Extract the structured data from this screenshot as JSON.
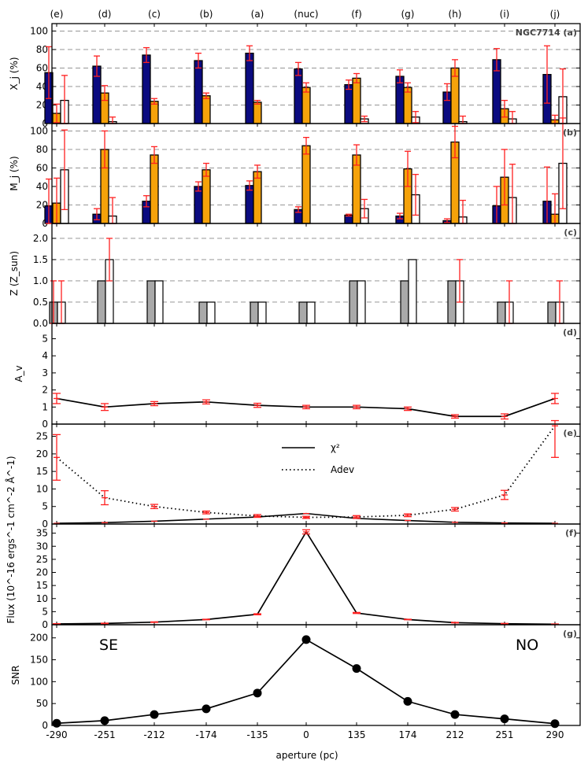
{
  "figure_title": "NGC7714 (a)",
  "colors": {
    "young": "#0b0b80",
    "inter": "#f5a20a",
    "old": "#ffffff",
    "metal": "#a9a9a9",
    "err": "#ff2020",
    "grid": "#888888"
  },
  "chart_data": {
    "type": "bar",
    "apertures": [
      -290,
      -251,
      -212,
      -174,
      -135,
      0,
      135,
      174,
      212,
      251,
      290
    ],
    "aperture_tick_labels": [
      "-290",
      "-251",
      "-212",
      "-174",
      "-135",
      "0",
      "135",
      "174",
      "212",
      "251",
      "290"
    ],
    "region_labels": [
      "(e)",
      "(d)",
      "(c)",
      "(b)",
      "(a)",
      "(nuc)",
      "(f)",
      "(g)",
      "(h)",
      "(i)",
      "(j)"
    ],
    "xlabel": "aperture (pc)",
    "panels": [
      {
        "id": "a",
        "label": "NGC7714 (a)",
        "ylabel": "X_j (%)",
        "ylim": [
          0,
          108
        ],
        "yticks": [
          0,
          20,
          40,
          60,
          80,
          100
        ],
        "grid_y": [
          20,
          40,
          60,
          80,
          100
        ],
        "series": [
          {
            "name": "young",
            "values": [
              55,
              62,
              74,
              68,
              76,
              59,
              42,
              51,
              34,
              69,
              53
            ],
            "err": [
              28,
              11,
              8,
              8,
              8,
              7,
              5,
              7,
              9,
              12,
              31
            ]
          },
          {
            "name": "intermediate",
            "values": [
              11,
              33,
              24,
              30,
              23,
              39,
              49,
              39,
              60,
              16,
              4
            ],
            "err": [
              10,
              8,
              3,
              3,
              2,
              5,
              5,
              5,
              9,
              9,
              5
            ]
          },
          {
            "name": "old",
            "values": [
              25,
              2,
              0,
              0,
              0,
              0,
              5,
              7,
              2,
              5,
              29
            ],
            "err": [
              27,
              5,
              0,
              0,
              0,
              0,
              3,
              6,
              6,
              8,
              30
            ]
          }
        ]
      },
      {
        "id": "b",
        "label": "(b)",
        "ylabel": "M_j (%)",
        "ylim": [
          0,
          108
        ],
        "yticks": [
          0,
          20,
          40,
          60,
          80,
          100
        ],
        "grid_y": [
          20,
          40,
          60,
          80,
          100
        ],
        "series": [
          {
            "name": "young",
            "values": [
              19,
              10,
              24,
              40,
              41,
              15,
              9,
              8,
              3,
              19,
              24
            ],
            "err": [
              29,
              6,
              6,
              5,
              5,
              3,
              1,
              3,
              2,
              21,
              37
            ]
          },
          {
            "name": "intermediate",
            "values": [
              22,
              80,
              74,
              58,
              56,
              84,
              74,
              59,
              88,
              50,
              10
            ],
            "err": [
              27,
              20,
              9,
              7,
              7,
              9,
              11,
              19,
              17,
              30,
              22
            ]
          },
          {
            "name": "old",
            "values": [
              58,
              8,
              0,
              0,
              0,
              0,
              16,
              31,
              7,
              28,
              65
            ],
            "err": [
              43,
              20,
              0,
              0,
              0,
              0,
              10,
              22,
              18,
              36,
              49
            ]
          }
        ]
      },
      {
        "id": "c",
        "label": "(c)",
        "ylabel": "Z (Z_sun)",
        "ylim": [
          0,
          2.35
        ],
        "yticks": [
          0.0,
          0.5,
          1.0,
          1.5,
          2.0
        ],
        "ytick_labels": [
          "0.0",
          "0.5",
          "1.0",
          "1.5",
          "2.0"
        ],
        "grid_y": [
          0.5,
          1.0,
          1.5,
          2.0
        ],
        "series": [
          {
            "name": "metal_young",
            "values": [
              0.5,
              1.0,
              1.0,
              0.5,
              0.5,
              0.5,
              1.0,
              1.0,
              1.0,
              0.5,
              0.5
            ],
            "err": [
              0.5,
              0,
              0,
              0,
              0,
              0,
              0,
              0,
              0,
              0,
              0
            ]
          },
          {
            "name": "metal_old",
            "values": [
              0.5,
              1.5,
              1.0,
              0.5,
              0.5,
              0.5,
              1.0,
              1.5,
              1.0,
              0.5,
              0.5
            ],
            "err": [
              0.5,
              0.5,
              0,
              0,
              0,
              0,
              0,
              0,
              0.5,
              0.5,
              0.5
            ]
          }
        ]
      },
      {
        "id": "d",
        "label": "(d)",
        "ylabel": "A_v",
        "ylim": [
          0,
          5.9
        ],
        "yticks": [
          0,
          1,
          2,
          3,
          4,
          5
        ],
        "line": {
          "values": [
            1.5,
            1.0,
            1.2,
            1.3,
            1.1,
            1.0,
            1.0,
            0.9,
            0.45,
            0.45,
            1.5
          ],
          "err": [
            0.3,
            0.2,
            0.12,
            0.12,
            0.12,
            0.1,
            0.1,
            0.1,
            0.1,
            0.15,
            0.3
          ]
        }
      },
      {
        "id": "e",
        "label": "(e)",
        "ylim": [
          0,
          28.5
        ],
        "yticks": [
          0,
          5,
          10,
          15,
          20,
          25
        ],
        "legend": [
          {
            "label": "χ²",
            "style": "solid"
          },
          {
            "label": "Adev",
            "style": "dotted"
          }
        ],
        "series": [
          {
            "name": "chi2",
            "values": [
              0.2,
              0.4,
              0.8,
              1.4,
              2.0,
              3.0,
              1.6,
              1.0,
              0.5,
              0.3,
              0.2
            ]
          },
          {
            "name": "adev",
            "values": [
              19,
              7.5,
              5.0,
              3.3,
              2.3,
              1.9,
              2.0,
              2.5,
              4.2,
              8.3,
              28
            ],
            "err": [
              6.5,
              2,
              0.6,
              0.4,
              0.4,
              0.3,
              0.4,
              0.4,
              0.5,
              1.3,
              9
            ]
          }
        ]
      },
      {
        "id": "f",
        "label": "(f)",
        "ylabel": "Flux (10^-16 ergs^-1 cm^-2 Å^-1)",
        "ylim": [
          0,
          38.5
        ],
        "yticks": [
          0,
          5,
          10,
          15,
          20,
          25,
          30,
          35
        ],
        "line": {
          "values": [
            0.3,
            0.5,
            1.0,
            2.0,
            4.0,
            35.5,
            4.5,
            2.0,
            0.8,
            0.4,
            0.2
          ],
          "err": [
            0.1,
            0.1,
            0.1,
            0.1,
            0.2,
            0.8,
            0.2,
            0.1,
            0.1,
            0.1,
            0.1
          ]
        }
      },
      {
        "id": "g",
        "label": "(g)",
        "ylabel": "SNR",
        "ylim": [
          0,
          230
        ],
        "yticks": [
          0,
          50,
          100,
          150,
          200
        ],
        "annotations": [
          "SE",
          "NO"
        ],
        "line": {
          "values": [
            5,
            11,
            25,
            38,
            74,
            196,
            130,
            55,
            25,
            15,
            4
          ]
        }
      }
    ]
  }
}
